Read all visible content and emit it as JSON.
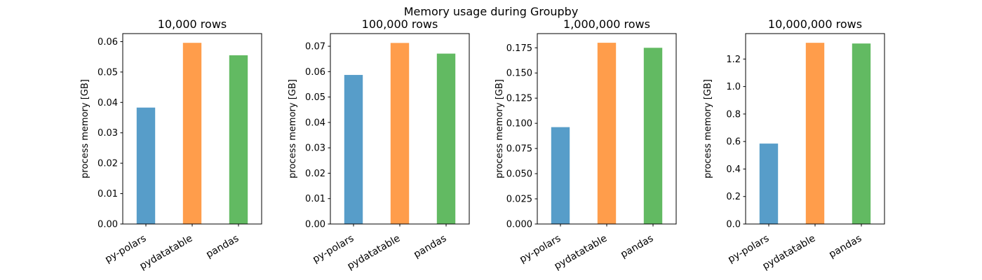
{
  "chart_data": {
    "type": "bar",
    "title": "Memory usage during Groupby",
    "colors": [
      "#579dc9",
      "#ff9d4b",
      "#62ba62"
    ],
    "subplots": [
      {
        "title": "10,000 rows",
        "categories": [
          "py-polars",
          "pydatatable",
          "pandas"
        ],
        "values": [
          0.0383,
          0.0596,
          0.0555
        ],
        "ylabel": "process memory [GB]",
        "ylim": [
          0,
          0.06264
        ],
        "yticks": [
          0.0,
          0.01,
          0.02,
          0.03,
          0.04,
          0.05,
          0.06
        ],
        "ytick_labels": [
          "0.00",
          "0.01",
          "0.02",
          "0.03",
          "0.04",
          "0.05",
          "0.06"
        ],
        "grid": false
      },
      {
        "title": "100,000 rows",
        "categories": [
          "py-polars",
          "pydatatable",
          "pandas"
        ],
        "values": [
          0.0587,
          0.0713,
          0.0671
        ],
        "ylabel": "process memory [GB]",
        "ylim": [
          0,
          0.07498
        ],
        "yticks": [
          0.0,
          0.01,
          0.02,
          0.03,
          0.04,
          0.05,
          0.06,
          0.07
        ],
        "ytick_labels": [
          "0.00",
          "0.01",
          "0.02",
          "0.03",
          "0.04",
          "0.05",
          "0.06",
          "0.07"
        ],
        "grid": false
      },
      {
        "title": "1,000,000 rows",
        "categories": [
          "py-polars",
          "pydatatable",
          "pandas"
        ],
        "values": [
          0.0962,
          0.18,
          0.175
        ],
        "ylabel": "process memory [GB]",
        "ylim": [
          0,
          0.1891
        ],
        "yticks": [
          0.0,
          0.025,
          0.05,
          0.075,
          0.1,
          0.125,
          0.15,
          0.175
        ],
        "ytick_labels": [
          "0.000",
          "0.025",
          "0.050",
          "0.075",
          "0.100",
          "0.125",
          "0.150",
          "0.175"
        ],
        "grid": false
      },
      {
        "title": "10,000,000 rows",
        "categories": [
          "py-polars",
          "pydatatable",
          "pandas"
        ],
        "values": [
          0.585,
          1.318,
          1.313
        ],
        "ylabel": "process memory [GB]",
        "ylim": [
          0,
          1.385
        ],
        "yticks": [
          0.0,
          0.2,
          0.4,
          0.6,
          0.8,
          1.0,
          1.2
        ],
        "ytick_labels": [
          "0.0",
          "0.2",
          "0.4",
          "0.6",
          "0.8",
          "1.0",
          "1.2"
        ],
        "grid": false
      }
    ]
  }
}
